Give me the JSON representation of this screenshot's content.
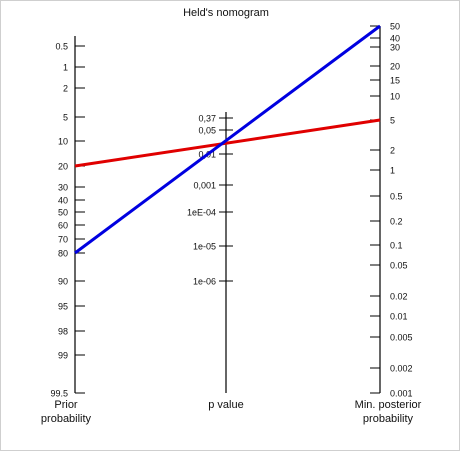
{
  "title": "Held's nomogram",
  "axes": {
    "prior": {
      "label_line1": "Prior",
      "label_line2": "probability",
      "ticks": [
        "0.5",
        "1",
        "2",
        "5",
        "10",
        "20",
        "30",
        "40",
        "50",
        "60",
        "70",
        "80",
        "90",
        "95",
        "98",
        "99",
        "99.5"
      ]
    },
    "pvalue": {
      "label": "p value",
      "ticks": [
        "0,37",
        "0,05",
        "0,01",
        "0,001",
        "1eE-04",
        "1e-05",
        "1e-06"
      ]
    },
    "posterior": {
      "label_line1": "Min. posterior",
      "label_line2": "probability",
      "ticks": [
        "50",
        "40",
        "30",
        "20",
        "15",
        "10",
        "5",
        "2",
        "1",
        "0.5",
        "0.2",
        "0.1",
        "0.05",
        "0.02",
        "0.01",
        "0.005",
        "0.002",
        "0.001"
      ]
    }
  },
  "lines": [
    {
      "color": "#e00000",
      "prior": "20",
      "p_value": "0,01",
      "posterior": "5"
    },
    {
      "color": "#0000e0",
      "prior": "80",
      "p_value": "0,01",
      "posterior": "50"
    }
  ]
}
